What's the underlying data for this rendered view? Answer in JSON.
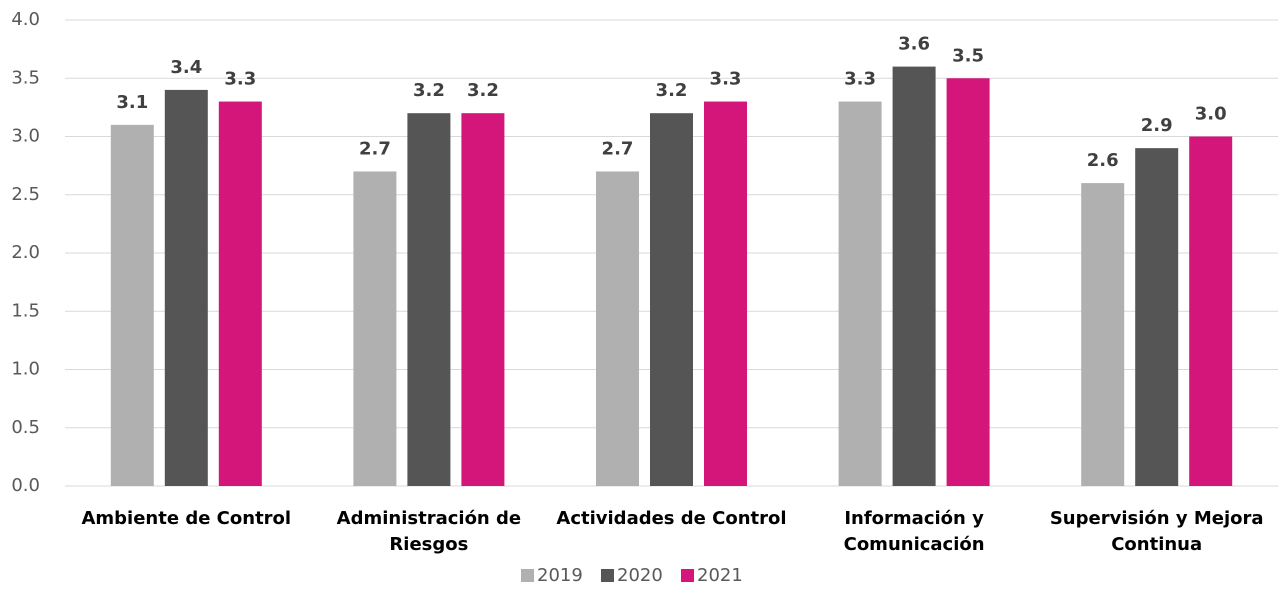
{
  "chart_data": {
    "type": "bar",
    "categories": [
      "Ambiente de Control",
      "Administración de Riesgos",
      "Actividades de Control",
      "Información y Comunicación",
      "Supervisión y Mejora Continua"
    ],
    "series": [
      {
        "name": "2019",
        "color": "#b0b0b0",
        "values": [
          3.1,
          2.7,
          2.7,
          3.3,
          2.6
        ],
        "value_labels": [
          "3.1",
          "2.7",
          "2.7",
          "3.3",
          "2.6"
        ]
      },
      {
        "name": "2020",
        "color": "#555555",
        "values": [
          3.4,
          3.2,
          3.2,
          3.6,
          2.9
        ],
        "value_labels": [
          "3.4",
          "3.2",
          "3.2",
          "3.6",
          "2.9"
        ]
      },
      {
        "name": "2021",
        "color": "#d4157a",
        "values": [
          3.3,
          3.2,
          3.3,
          3.5,
          3.0
        ],
        "value_labels": [
          "3.3",
          "3.2",
          "3.3",
          "3.5",
          "3.0"
        ]
      }
    ],
    "ylim": [
      0,
      4
    ],
    "yticks": [
      {
        "value": 0,
        "label": "0.0"
      },
      0.5,
      {
        "value": 1,
        "label": "1.0"
      },
      1.5,
      {
        "value": 2,
        "label": "2.0"
      },
      2.5,
      {
        "value": 3,
        "label": "3.0"
      },
      3.5,
      {
        "value": 4,
        "label": "4.0"
      }
    ],
    "grid": true,
    "legend": "bottom"
  }
}
